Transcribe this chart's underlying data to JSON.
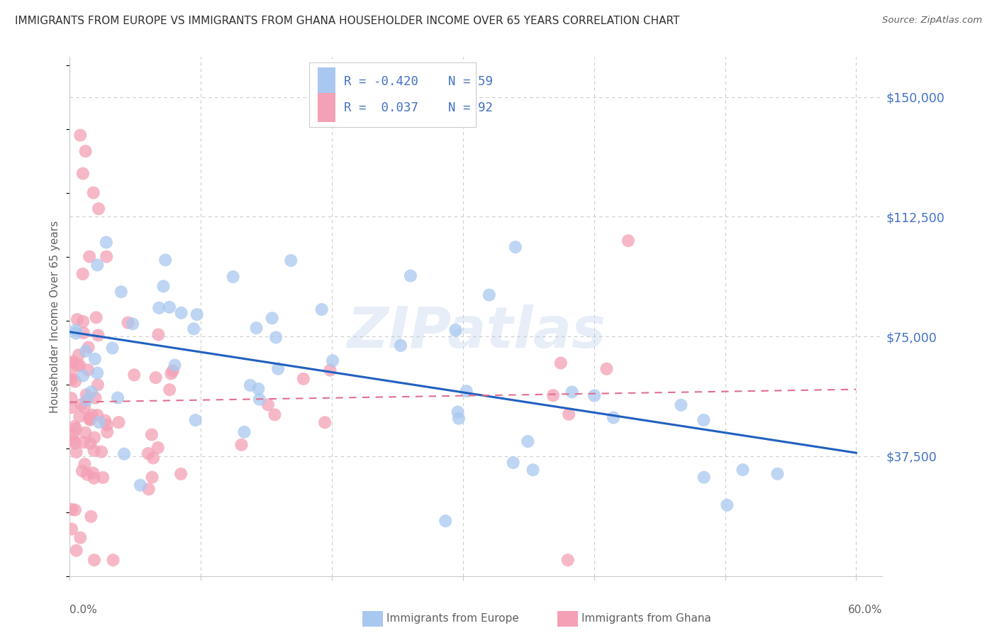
{
  "title": "IMMIGRANTS FROM EUROPE VS IMMIGRANTS FROM GHANA HOUSEHOLDER INCOME OVER 65 YEARS CORRELATION CHART",
  "source": "Source: ZipAtlas.com",
  "ylabel": "Householder Income Over 65 years",
  "ytick_labels": [
    "$150,000",
    "$112,500",
    "$75,000",
    "$37,500"
  ],
  "ytick_values": [
    150000,
    112500,
    75000,
    37500
  ],
  "ylim": [
    0,
    162500
  ],
  "xlim": [
    0.0,
    0.62
  ],
  "watermark": "ZIPatlas",
  "legend_europe_R": "-0.420",
  "legend_europe_N": "59",
  "legend_ghana_R": "0.037",
  "legend_ghana_N": "92",
  "europe_color": "#A8C8F0",
  "ghana_color": "#F4A0B5",
  "europe_line_color": "#2060C0",
  "ghana_line_color": "#E07090",
  "title_color": "#303030",
  "axis_label_color": "#606060",
  "right_tick_color": "#4472C4",
  "grid_color": "#CCCCCC",
  "x_ticks": [
    0.0,
    0.1,
    0.2,
    0.3,
    0.4,
    0.5,
    0.6
  ]
}
